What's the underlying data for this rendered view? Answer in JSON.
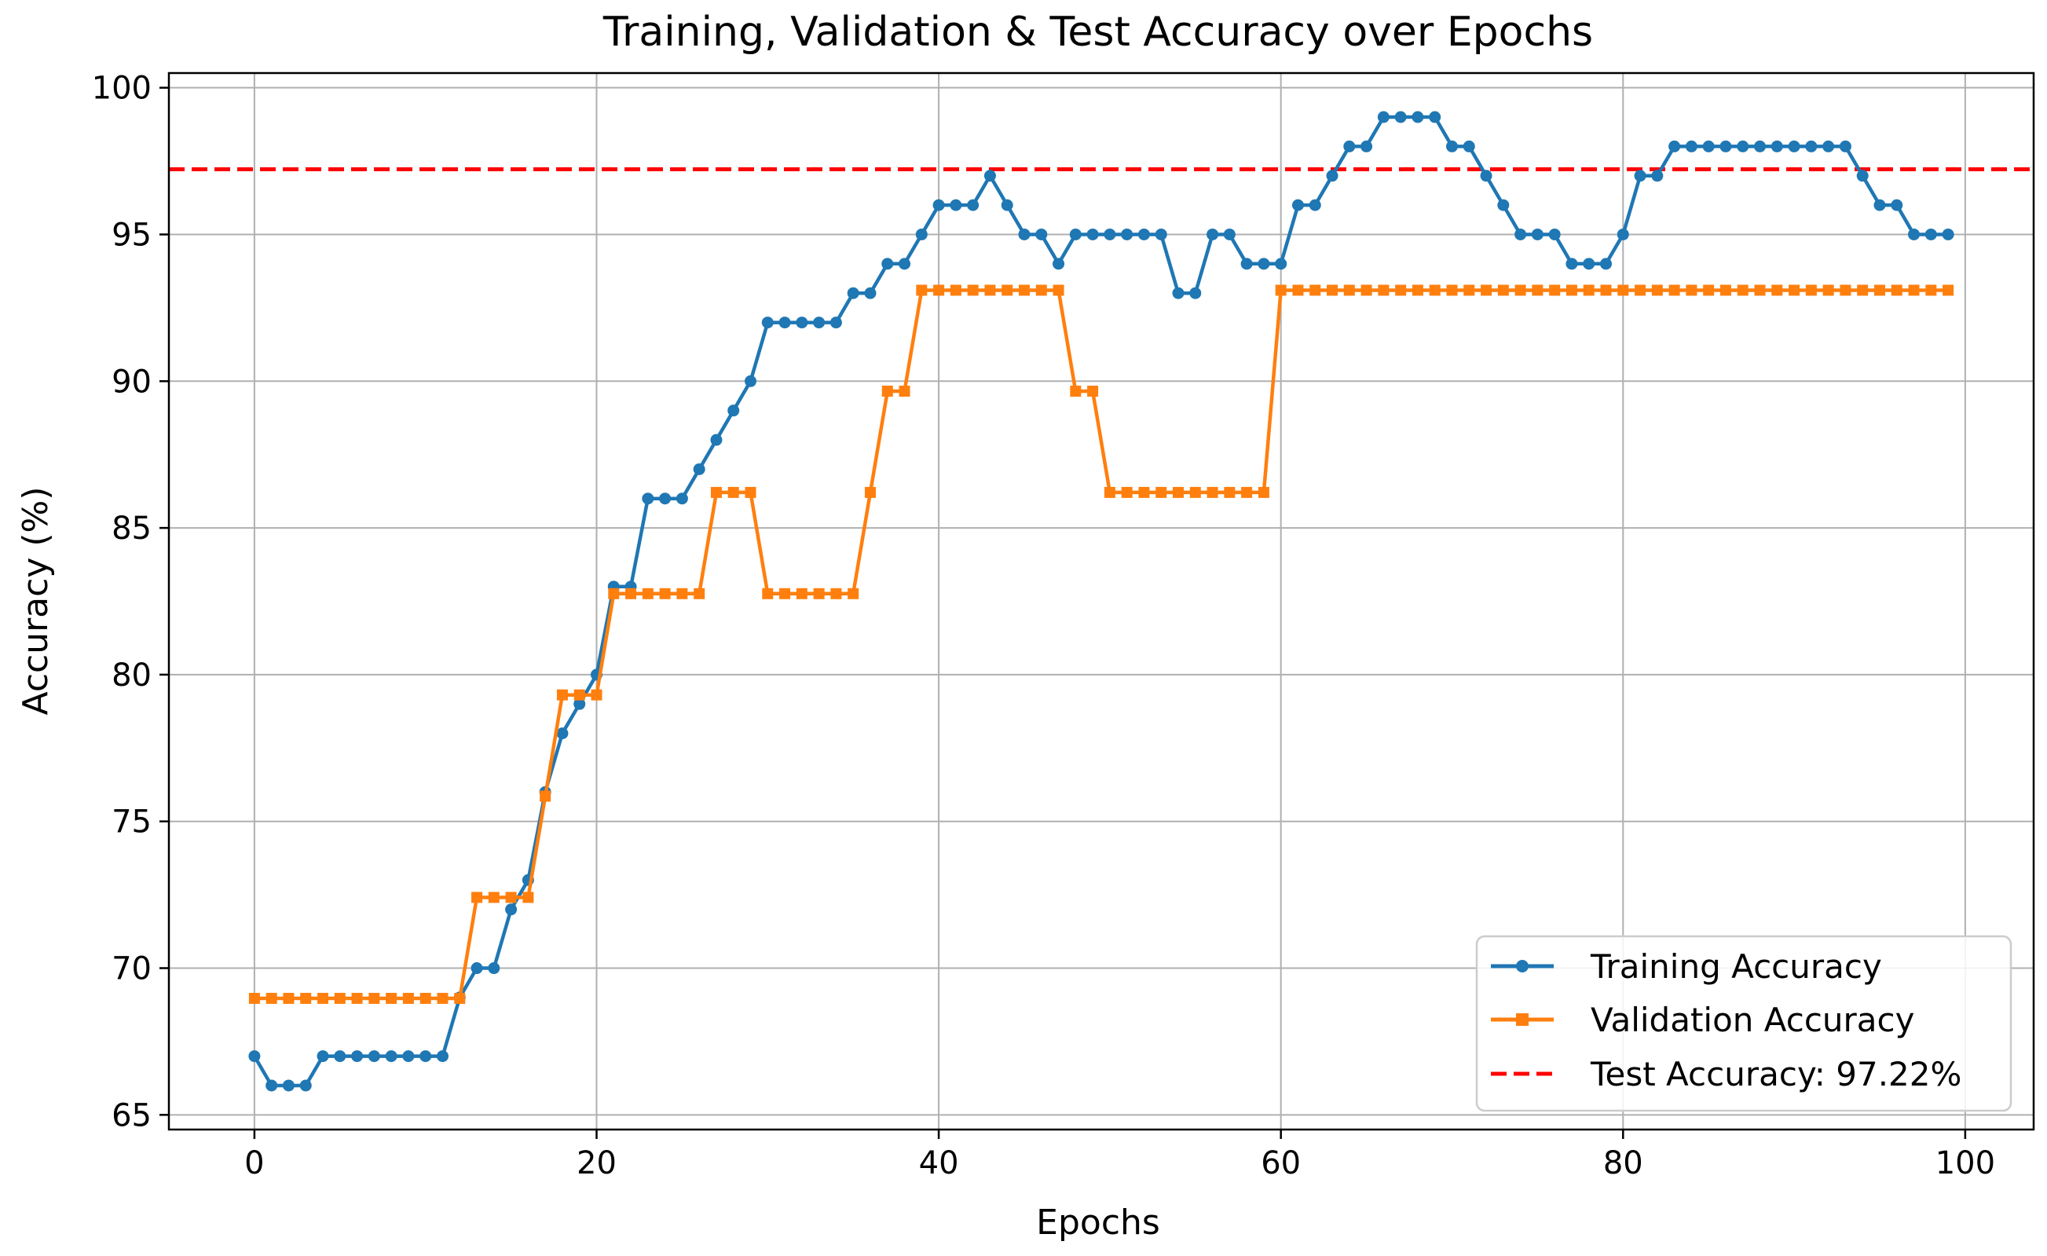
{
  "chart_data": {
    "type": "line",
    "title": "Training, Validation & Test Accuracy over Epochs",
    "xlabel": "Epochs",
    "ylabel": "Accuracy (%)",
    "xlim": [
      -5,
      104
    ],
    "ylim": [
      64.5,
      100.5
    ],
    "xticks": [
      0,
      20,
      40,
      60,
      80,
      100
    ],
    "yticks": [
      65,
      70,
      75,
      80,
      85,
      90,
      95,
      100
    ],
    "grid": true,
    "legend_position": "lower-right",
    "series": [
      {
        "name": "Training Accuracy",
        "color": "#1f77b4",
        "marker": "circle",
        "x": [
          0,
          1,
          2,
          3,
          4,
          5,
          6,
          7,
          8,
          9,
          10,
          11,
          12,
          13,
          14,
          15,
          16,
          17,
          18,
          19,
          20,
          21,
          22,
          23,
          24,
          25,
          26,
          27,
          28,
          29,
          30,
          31,
          32,
          33,
          34,
          35,
          36,
          37,
          38,
          39,
          40,
          41,
          42,
          43,
          44,
          45,
          46,
          47,
          48,
          49,
          50,
          51,
          52,
          53,
          54,
          55,
          56,
          57,
          58,
          59,
          60,
          61,
          62,
          63,
          64,
          65,
          66,
          67,
          68,
          69,
          70,
          71,
          72,
          73,
          74,
          75,
          76,
          77,
          78,
          79,
          80,
          81,
          82,
          83,
          84,
          85,
          86,
          87,
          88,
          89,
          90,
          91,
          92,
          93,
          94,
          95,
          96,
          97,
          98,
          99
        ],
        "y": [
          67,
          66,
          66,
          66,
          67,
          67,
          67,
          67,
          67,
          67,
          67,
          67,
          69,
          70,
          70,
          72,
          73,
          76,
          78,
          79,
          80,
          83,
          83,
          86,
          86,
          86,
          87,
          88,
          89,
          90,
          92,
          92,
          92,
          92,
          92,
          93,
          93,
          94,
          94,
          95,
          96,
          96,
          96,
          97,
          96,
          95,
          95,
          94,
          95,
          95,
          95,
          95,
          95,
          95,
          93,
          93,
          95,
          95,
          94,
          94,
          94,
          96,
          96,
          97,
          98,
          98,
          99,
          99,
          99,
          99,
          98,
          98,
          97,
          96,
          95,
          95,
          95,
          94,
          94,
          94,
          95,
          97,
          97,
          98,
          98,
          98,
          98,
          98,
          98,
          98,
          98,
          98,
          98,
          98,
          97,
          96,
          96,
          95,
          95,
          95
        ]
      },
      {
        "name": "Validation Accuracy",
        "color": "#ff7f0e",
        "marker": "square",
        "x": [
          0,
          1,
          2,
          3,
          4,
          5,
          6,
          7,
          8,
          9,
          10,
          11,
          12,
          13,
          14,
          15,
          16,
          17,
          18,
          19,
          20,
          21,
          22,
          23,
          24,
          25,
          26,
          27,
          28,
          29,
          30,
          31,
          32,
          33,
          34,
          35,
          36,
          37,
          38,
          39,
          40,
          41,
          42,
          43,
          44,
          45,
          46,
          47,
          48,
          49,
          50,
          51,
          52,
          53,
          54,
          55,
          56,
          57,
          58,
          59,
          60,
          61,
          62,
          63,
          64,
          65,
          66,
          67,
          68,
          69,
          70,
          71,
          72,
          73,
          74,
          75,
          76,
          77,
          78,
          79,
          80,
          81,
          82,
          83,
          84,
          85,
          86,
          87,
          88,
          89,
          90,
          91,
          92,
          93,
          94,
          95,
          96,
          97,
          98,
          99
        ],
        "y": [
          68.97,
          68.97,
          68.97,
          68.97,
          68.97,
          68.97,
          68.97,
          68.97,
          68.97,
          68.97,
          68.97,
          68.97,
          68.97,
          72.41,
          72.41,
          72.41,
          72.41,
          75.86,
          79.31,
          79.31,
          79.31,
          82.76,
          82.76,
          82.76,
          82.76,
          82.76,
          82.76,
          86.21,
          86.21,
          86.21,
          82.76,
          82.76,
          82.76,
          82.76,
          82.76,
          82.76,
          86.21,
          89.66,
          89.66,
          93.1,
          93.1,
          93.1,
          93.1,
          93.1,
          93.1,
          93.1,
          93.1,
          93.1,
          89.66,
          89.66,
          86.21,
          86.21,
          86.21,
          86.21,
          86.21,
          86.21,
          86.21,
          86.21,
          86.21,
          86.21,
          93.1,
          93.1,
          93.1,
          93.1,
          93.1,
          93.1,
          93.1,
          93.1,
          93.1,
          93.1,
          93.1,
          93.1,
          93.1,
          93.1,
          93.1,
          93.1,
          93.1,
          93.1,
          93.1,
          93.1,
          93.1,
          93.1,
          93.1,
          93.1,
          93.1,
          93.1,
          93.1,
          93.1,
          93.1,
          93.1,
          93.1,
          93.1,
          93.1,
          93.1,
          93.1,
          93.1,
          93.1,
          93.1,
          93.1,
          93.1
        ]
      }
    ],
    "reference_line": {
      "name": "Test Accuracy: 97.22%",
      "y": 97.22,
      "color": "#ff0000",
      "style": "dashed"
    }
  }
}
